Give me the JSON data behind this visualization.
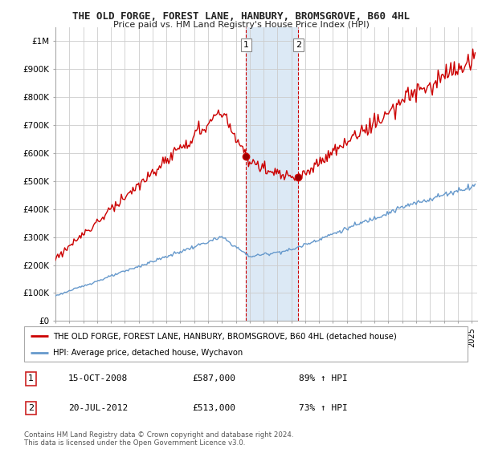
{
  "title": "THE OLD FORGE, FOREST LANE, HANBURY, BROMSGROVE, B60 4HL",
  "subtitle": "Price paid vs. HM Land Registry's House Price Index (HPI)",
  "legend_line1": "THE OLD FORGE, FOREST LANE, HANBURY, BROMSGROVE, B60 4HL (detached house)",
  "legend_line2": "HPI: Average price, detached house, Wychavon",
  "annotation1_date": "15-OCT-2008",
  "annotation1_price": "£587,000",
  "annotation1_hpi": "89% ↑ HPI",
  "annotation2_date": "20-JUL-2012",
  "annotation2_price": "£513,000",
  "annotation2_hpi": "73% ↑ HPI",
  "footer": "Contains HM Land Registry data © Crown copyright and database right 2024.\nThis data is licensed under the Open Government Licence v3.0.",
  "red_color": "#cc0000",
  "blue_color": "#6699cc",
  "bg_color": "#ffffff",
  "grid_color": "#cccccc",
  "highlight_color": "#dce9f5",
  "ylim": [
    0,
    1050000
  ],
  "yticks": [
    0,
    100000,
    200000,
    300000,
    400000,
    500000,
    600000,
    700000,
    800000,
    900000,
    1000000
  ],
  "ytick_labels": [
    "£0",
    "£100K",
    "£200K",
    "£300K",
    "£400K",
    "£500K",
    "£600K",
    "£700K",
    "£800K",
    "£900K",
    "£1M"
  ],
  "sale1_year": 2008,
  "sale1_month": 10,
  "sale1_price": 587000,
  "sale2_year": 2012,
  "sale2_month": 7,
  "sale2_price": 513000
}
